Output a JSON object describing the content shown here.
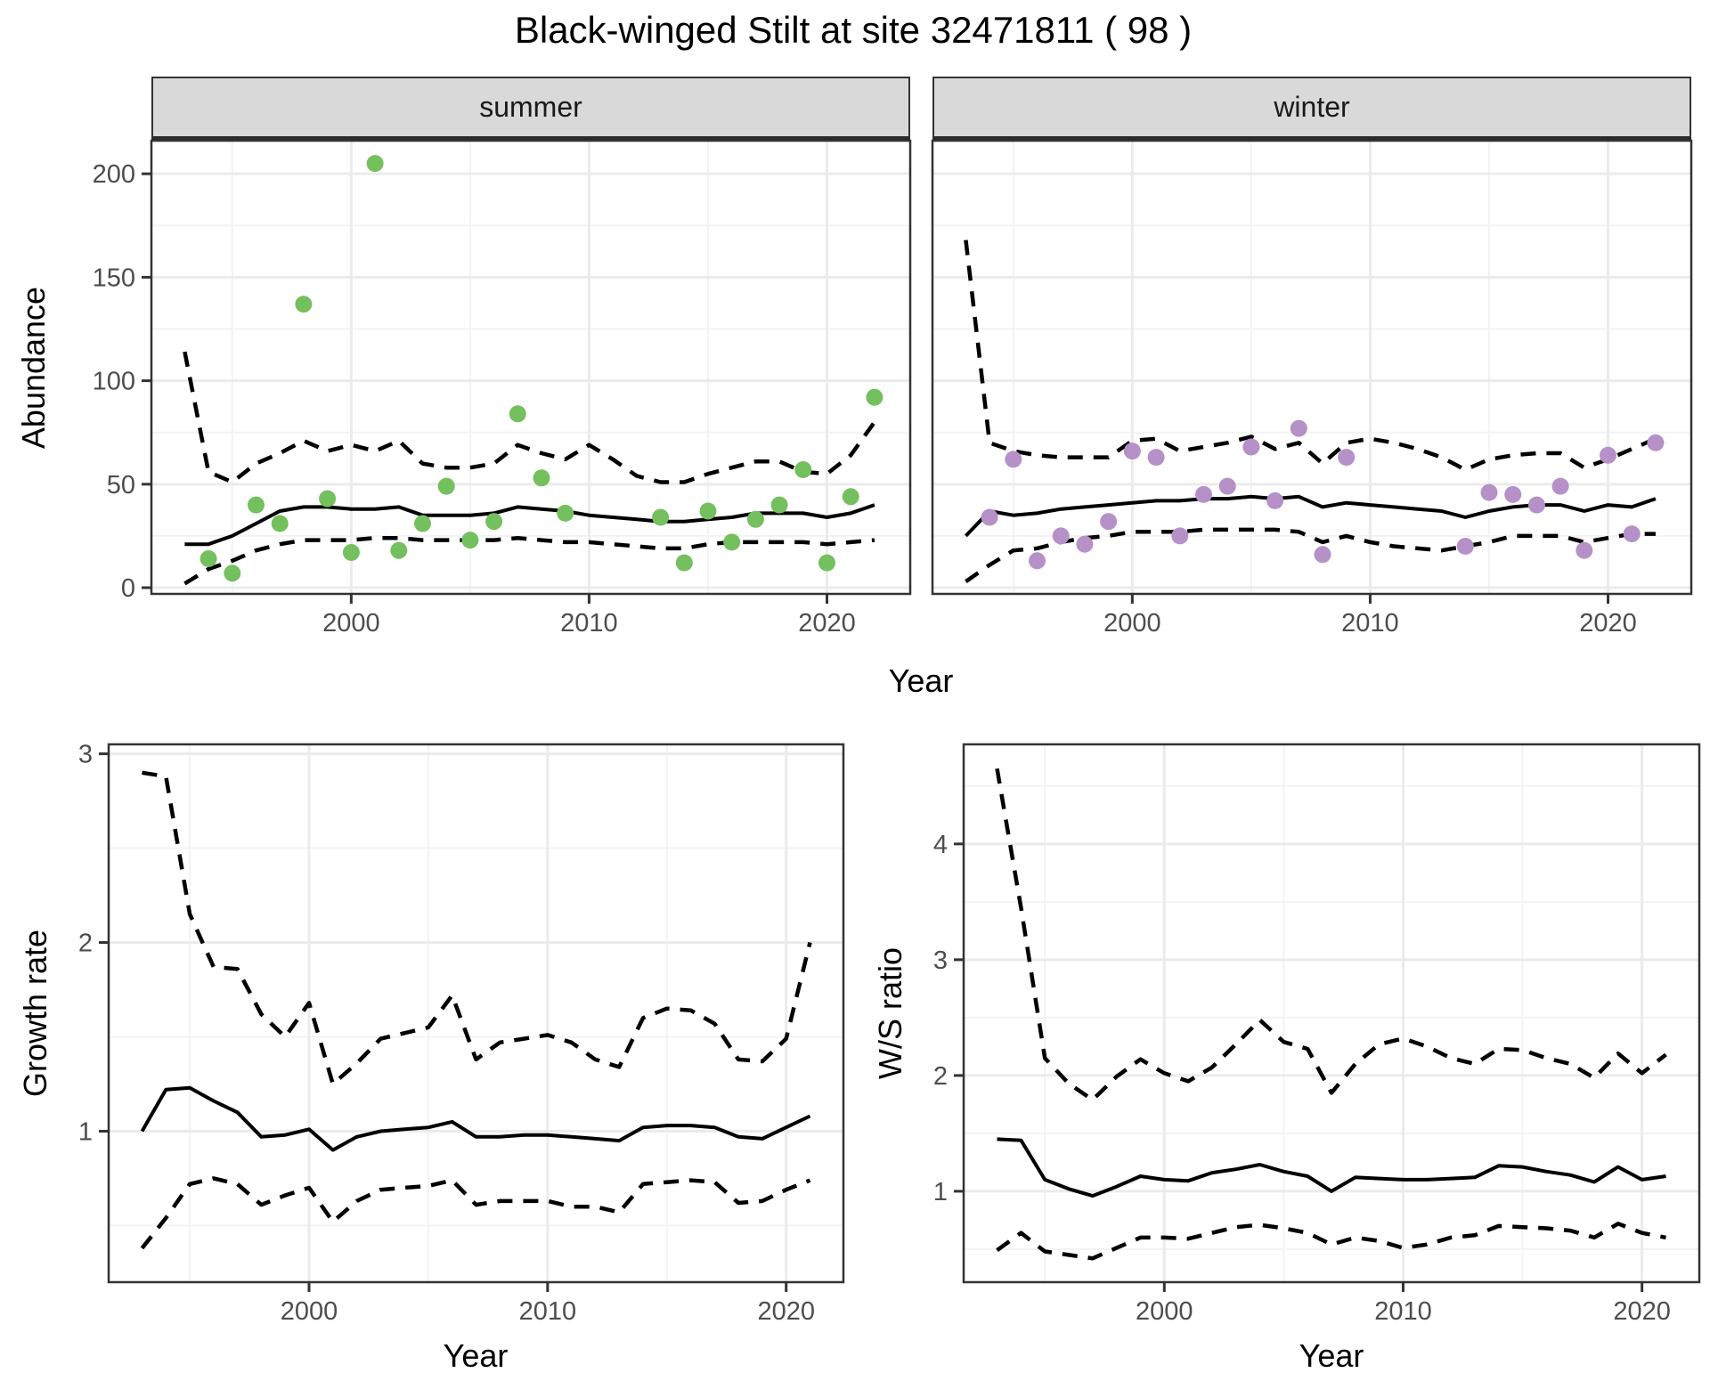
{
  "labels": {
    "title": "Black-winged Stilt at site 32471811 ( 98 )",
    "facets": [
      "summer",
      "winter"
    ],
    "abundance": "Abundance",
    "year": "Year",
    "growth_rate": "Growth rate",
    "ws_ratio": "W/S ratio"
  },
  "colors": {
    "summer_points": "#74C05E",
    "winter_points": "#B591C8",
    "mean_line": "#000000",
    "ci_line": "#000000",
    "panel_border": "#333333",
    "grid_major": "#EBEBEB",
    "grid_minor": "#F3F3F3",
    "strip_fill": "#D9D9D9",
    "tick_text": "#4D4D4D",
    "tick_mark": "#333333"
  },
  "chart_data": [
    {
      "id": "summer",
      "type": "scatter",
      "facet_label": "summer",
      "xlabel": "Year",
      "ylabel": "Abundance",
      "xlim": [
        1991.6,
        2023.5
      ],
      "ylim": [
        -3,
        216
      ],
      "xticks": [
        2000,
        2010,
        2020
      ],
      "xminor": [
        1995,
        2005,
        2015
      ],
      "yticks": [
        0,
        50,
        100,
        150,
        200
      ],
      "yminor": [
        25,
        75,
        125,
        175
      ],
      "show_yticks": true,
      "point_color": "#74C05E",
      "points": {
        "x": [
          1994,
          1995,
          1996,
          1997,
          1998,
          1999,
          2000,
          2001,
          2002,
          2003,
          2004,
          2005,
          2006,
          2007,
          2008,
          2009,
          2013,
          2014,
          2015,
          2016,
          2017,
          2018,
          2019,
          2020,
          2021,
          2022
        ],
        "y": [
          14,
          7,
          40,
          31,
          137,
          43,
          17,
          205,
          18,
          31,
          49,
          23,
          32,
          84,
          53,
          36,
          34,
          12,
          37,
          22,
          33,
          40,
          57,
          12,
          44,
          92
        ]
      },
      "mean_line": {
        "x": [
          1993,
          1994,
          1995,
          1996,
          1997,
          1998,
          1999,
          2000,
          2001,
          2002,
          2003,
          2004,
          2005,
          2006,
          2007,
          2008,
          2009,
          2010,
          2011,
          2012,
          2013,
          2014,
          2015,
          2016,
          2017,
          2018,
          2019,
          2020,
          2021,
          2022
        ],
        "y": [
          21,
          21,
          25,
          31,
          37,
          39,
          39,
          38,
          38,
          39,
          35,
          35,
          35,
          36,
          39,
          38,
          37,
          35,
          34,
          33,
          32,
          32,
          33,
          34,
          36,
          36,
          36,
          34,
          36,
          40
        ]
      },
      "upper_ci": {
        "x": [
          1993,
          1994,
          1995,
          1996,
          1997,
          1998,
          1999,
          2000,
          2001,
          2002,
          2003,
          2004,
          2005,
          2006,
          2007,
          2008,
          2009,
          2010,
          2011,
          2012,
          2013,
          2014,
          2015,
          2016,
          2017,
          2018,
          2019,
          2020,
          2021,
          2022
        ],
        "y": [
          114,
          56,
          51,
          60,
          65,
          71,
          66,
          69,
          66,
          71,
          60,
          58,
          58,
          60,
          69,
          65,
          62,
          69,
          62,
          54,
          51,
          51,
          55,
          58,
          61,
          61,
          56,
          55,
          64,
          80
        ]
      },
      "lower_ci": {
        "x": [
          1993,
          1994,
          1995,
          1996,
          1997,
          1998,
          1999,
          2000,
          2001,
          2002,
          2003,
          2004,
          2005,
          2006,
          2007,
          2008,
          2009,
          2010,
          2011,
          2012,
          2013,
          2014,
          2015,
          2016,
          2017,
          2018,
          2019,
          2020,
          2021,
          2022
        ],
        "y": [
          2,
          9,
          13,
          18,
          21,
          23,
          23,
          23,
          24,
          24,
          23,
          23,
          23,
          23,
          24,
          23,
          22,
          22,
          21,
          20,
          19,
          19,
          21,
          22,
          22,
          22,
          22,
          21,
          22,
          23
        ]
      }
    },
    {
      "id": "winter",
      "type": "scatter",
      "facet_label": "winter",
      "xlabel": "Year",
      "ylabel": "Abundance",
      "xlim": [
        1991.6,
        2023.5
      ],
      "ylim": [
        -3,
        216
      ],
      "xticks": [
        2000,
        2010,
        2020
      ],
      "xminor": [
        1995,
        2005,
        2015
      ],
      "yticks": [
        0,
        50,
        100,
        150,
        200
      ],
      "yminor": [
        25,
        75,
        125,
        175
      ],
      "show_yticks": false,
      "point_color": "#B591C8",
      "points": {
        "x": [
          1994,
          1995,
          1996,
          1997,
          1998,
          1999,
          2000,
          2001,
          2002,
          2003,
          2004,
          2005,
          2006,
          2007,
          2008,
          2009,
          2014,
          2015,
          2016,
          2017,
          2018,
          2019,
          2020,
          2021,
          2022
        ],
        "y": [
          34,
          62,
          13,
          25,
          21,
          32,
          66,
          63,
          25,
          45,
          49,
          68,
          42,
          77,
          16,
          63,
          20,
          46,
          45,
          40,
          49,
          18,
          64,
          26,
          70
        ]
      },
      "mean_line": {
        "x": [
          1993,
          1994,
          1995,
          1996,
          1997,
          1998,
          1999,
          2000,
          2001,
          2002,
          2003,
          2004,
          2005,
          2006,
          2007,
          2008,
          2009,
          2010,
          2011,
          2012,
          2013,
          2014,
          2015,
          2016,
          2017,
          2018,
          2019,
          2020,
          2021,
          2022
        ],
        "y": [
          25,
          37,
          35,
          36,
          38,
          39,
          40,
          41,
          42,
          42,
          43,
          43,
          44,
          43,
          44,
          39,
          41,
          40,
          39,
          38,
          37,
          34,
          37,
          39,
          40,
          40,
          37,
          40,
          39,
          43
        ]
      },
      "upper_ci": {
        "x": [
          1993,
          1994,
          1995,
          1996,
          1997,
          1998,
          1999,
          2000,
          2001,
          2002,
          2003,
          2004,
          2005,
          2006,
          2007,
          2008,
          2009,
          2010,
          2011,
          2012,
          2013,
          2014,
          2015,
          2016,
          2017,
          2018,
          2019,
          2020,
          2021,
          2022
        ],
        "y": [
          168,
          70,
          66,
          64,
          63,
          63,
          63,
          71,
          72,
          66,
          68,
          70,
          73,
          67,
          70,
          60,
          70,
          72,
          70,
          67,
          63,
          57,
          62,
          64,
          65,
          65,
          58,
          62,
          67,
          72
        ]
      },
      "lower_ci": {
        "x": [
          1993,
          1994,
          1995,
          1996,
          1997,
          1998,
          1999,
          2000,
          2001,
          2002,
          2003,
          2004,
          2005,
          2006,
          2007,
          2008,
          2009,
          2010,
          2011,
          2012,
          2013,
          2014,
          2015,
          2016,
          2017,
          2018,
          2019,
          2020,
          2021,
          2022
        ],
        "y": [
          3,
          11,
          18,
          19,
          22,
          24,
          25,
          27,
          27,
          27,
          28,
          28,
          28,
          28,
          27,
          22,
          25,
          22,
          20,
          19,
          18,
          20,
          22,
          25,
          25,
          25,
          22,
          24,
          26,
          26
        ]
      }
    },
    {
      "id": "growth",
      "type": "line",
      "facet_label": "",
      "xlabel": "Year",
      "ylabel": "Growth rate",
      "xlim": [
        1991.6,
        2022.4
      ],
      "ylim": [
        0.2,
        3.05
      ],
      "xticks": [
        2000,
        2010,
        2020
      ],
      "xminor": [
        1995,
        2005,
        2015
      ],
      "yticks": [
        1,
        2,
        3
      ],
      "yminor": [
        0.5,
        1.5,
        2.5
      ],
      "show_yticks": true,
      "point_color": null,
      "points": {
        "x": [],
        "y": []
      },
      "mean_line": {
        "x": [
          1993,
          1994,
          1995,
          1996,
          1997,
          1998,
          1999,
          2000,
          2001,
          2002,
          2003,
          2004,
          2005,
          2006,
          2007,
          2008,
          2009,
          2010,
          2011,
          2012,
          2013,
          2014,
          2015,
          2016,
          2017,
          2018,
          2019,
          2020,
          2021
        ],
        "y": [
          1.0,
          1.22,
          1.23,
          1.16,
          1.1,
          0.97,
          0.98,
          1.01,
          0.9,
          0.97,
          1.0,
          1.01,
          1.02,
          1.05,
          0.97,
          0.97,
          0.98,
          0.98,
          0.97,
          0.96,
          0.95,
          1.02,
          1.03,
          1.03,
          1.02,
          0.97,
          0.96,
          1.02,
          1.08
        ]
      },
      "upper_ci": {
        "x": [
          1993,
          1994,
          1995,
          1996,
          1997,
          1998,
          1999,
          2000,
          2001,
          2002,
          2003,
          2004,
          2005,
          2006,
          2007,
          2008,
          2009,
          2010,
          2011,
          2012,
          2013,
          2014,
          2015,
          2016,
          2017,
          2018,
          2019,
          2020,
          2021
        ],
        "y": [
          2.9,
          2.88,
          2.15,
          1.87,
          1.86,
          1.62,
          1.5,
          1.68,
          1.25,
          1.36,
          1.49,
          1.52,
          1.55,
          1.72,
          1.38,
          1.47,
          1.49,
          1.51,
          1.47,
          1.38,
          1.34,
          1.6,
          1.65,
          1.64,
          1.57,
          1.38,
          1.37,
          1.49,
          2.0
        ]
      },
      "lower_ci": {
        "x": [
          1993,
          1994,
          1995,
          1996,
          1997,
          1998,
          1999,
          2000,
          2001,
          2002,
          2003,
          2004,
          2005,
          2006,
          2007,
          2008,
          2009,
          2010,
          2011,
          2012,
          2013,
          2014,
          2015,
          2016,
          2017,
          2018,
          2019,
          2020,
          2021
        ],
        "y": [
          0.38,
          0.54,
          0.72,
          0.75,
          0.72,
          0.61,
          0.66,
          0.7,
          0.52,
          0.63,
          0.69,
          0.7,
          0.71,
          0.74,
          0.61,
          0.63,
          0.63,
          0.63,
          0.6,
          0.6,
          0.57,
          0.72,
          0.73,
          0.74,
          0.73,
          0.62,
          0.63,
          0.69,
          0.74
        ]
      }
    },
    {
      "id": "ws",
      "type": "line",
      "facet_label": "",
      "xlabel": "Year",
      "ylabel": "W/S ratio",
      "xlim": [
        1991.6,
        2022.4
      ],
      "ylim": [
        0.215,
        4.86
      ],
      "xticks": [
        2000,
        2010,
        2020
      ],
      "xminor": [
        1995,
        2005,
        2015
      ],
      "yticks": [
        1,
        2,
        3,
        4
      ],
      "yminor": [
        0.5,
        1.5,
        2.5,
        3.5,
        4.5
      ],
      "show_yticks": true,
      "point_color": null,
      "points": {
        "x": [],
        "y": []
      },
      "mean_line": {
        "x": [
          1993,
          1994,
          1995,
          1996,
          1997,
          1998,
          1999,
          2000,
          2001,
          2002,
          2003,
          2004,
          2005,
          2006,
          2007,
          2008,
          2009,
          2010,
          2011,
          2012,
          2013,
          2014,
          2015,
          2016,
          2017,
          2018,
          2019,
          2020,
          2021
        ],
        "y": [
          1.45,
          1.44,
          1.1,
          1.02,
          0.96,
          1.04,
          1.13,
          1.1,
          1.09,
          1.16,
          1.19,
          1.23,
          1.17,
          1.13,
          1.0,
          1.12,
          1.11,
          1.1,
          1.1,
          1.11,
          1.12,
          1.22,
          1.21,
          1.17,
          1.14,
          1.08,
          1.21,
          1.1,
          1.13
        ]
      },
      "upper_ci": {
        "x": [
          1993,
          1994,
          1995,
          1996,
          1997,
          1998,
          1999,
          2000,
          2001,
          2002,
          2003,
          2004,
          2005,
          2006,
          2007,
          2008,
          2009,
          2010,
          2011,
          2012,
          2013,
          2014,
          2015,
          2016,
          2017,
          2018,
          2019,
          2020,
          2021
        ],
        "y": [
          4.65,
          3.45,
          2.15,
          1.93,
          1.79,
          1.99,
          2.14,
          2.02,
          1.95,
          2.07,
          2.27,
          2.48,
          2.29,
          2.23,
          1.85,
          2.1,
          2.27,
          2.32,
          2.25,
          2.15,
          2.1,
          2.23,
          2.22,
          2.15,
          2.1,
          1.98,
          2.19,
          2.02,
          2.18
        ]
      },
      "lower_ci": {
        "x": [
          1993,
          1994,
          1995,
          1996,
          1997,
          1998,
          1999,
          2000,
          2001,
          2002,
          2003,
          2004,
          2005,
          2006,
          2007,
          2008,
          2009,
          2010,
          2011,
          2012,
          2013,
          2014,
          2015,
          2016,
          2017,
          2018,
          2019,
          2020,
          2021
        ],
        "y": [
          0.49,
          0.64,
          0.48,
          0.45,
          0.42,
          0.51,
          0.6,
          0.6,
          0.59,
          0.64,
          0.69,
          0.71,
          0.68,
          0.64,
          0.54,
          0.6,
          0.57,
          0.51,
          0.54,
          0.6,
          0.62,
          0.7,
          0.69,
          0.68,
          0.66,
          0.6,
          0.72,
          0.64,
          0.6
        ]
      }
    }
  ]
}
